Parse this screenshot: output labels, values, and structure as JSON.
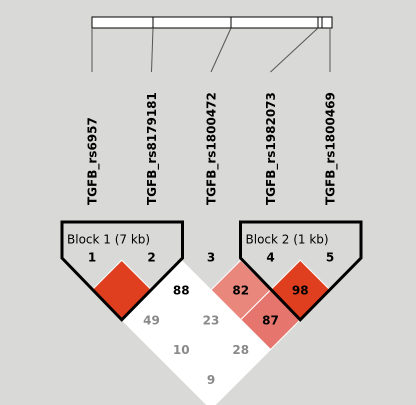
{
  "markers": [
    {
      "name": "TGFB_rs6957",
      "number": "1",
      "color": "#000000"
    },
    {
      "name": "TGFB_rs8179181",
      "number": "2",
      "color": "#000000"
    },
    {
      "name": "TGFB_rs1800472",
      "number": "3",
      "color": "#333333"
    },
    {
      "name": "TGFB_rs1982073",
      "number": "4",
      "color": "#000000"
    },
    {
      "name": "TGFB_rs1800469",
      "number": "5",
      "color": "#000000"
    }
  ],
  "blocks": [
    {
      "label": "Block 1 (7 kb)",
      "from": 0,
      "to": 1
    },
    {
      "label": "Block 2 (1 kb)",
      "from": 3,
      "to": 4
    }
  ],
  "cells": [
    {
      "i": 0,
      "j": 1,
      "color": "#e03f1f"
    },
    {
      "i": 1,
      "j": 2,
      "label": "88",
      "color": "#ffffff",
      "text_color": "#000000"
    },
    {
      "i": 2,
      "j": 3,
      "label": "82",
      "color": "#e9877d",
      "text_color": "#000000"
    },
    {
      "i": 3,
      "j": 4,
      "label": "98",
      "color": "#e03f1f",
      "text_color": "#000000"
    },
    {
      "i": 0,
      "j": 2,
      "label": "49",
      "color": "#ffffff",
      "text_color": "#8a8a8a"
    },
    {
      "i": 1,
      "j": 3,
      "label": "23",
      "color": "#ffffff",
      "text_color": "#8a8a8a"
    },
    {
      "i": 2,
      "j": 4,
      "label": "87",
      "color": "#e6766d",
      "text_color": "#000000"
    },
    {
      "i": 0,
      "j": 3,
      "label": "10",
      "color": "#ffffff",
      "text_color": "#8a8a8a"
    },
    {
      "i": 1,
      "j": 4,
      "label": "28",
      "color": "#ffffff",
      "text_color": "#8a8a8a"
    },
    {
      "i": 0,
      "j": 4,
      "label": "9",
      "color": "#ffffff",
      "text_color": "#8a8a8a"
    }
  ]
}
